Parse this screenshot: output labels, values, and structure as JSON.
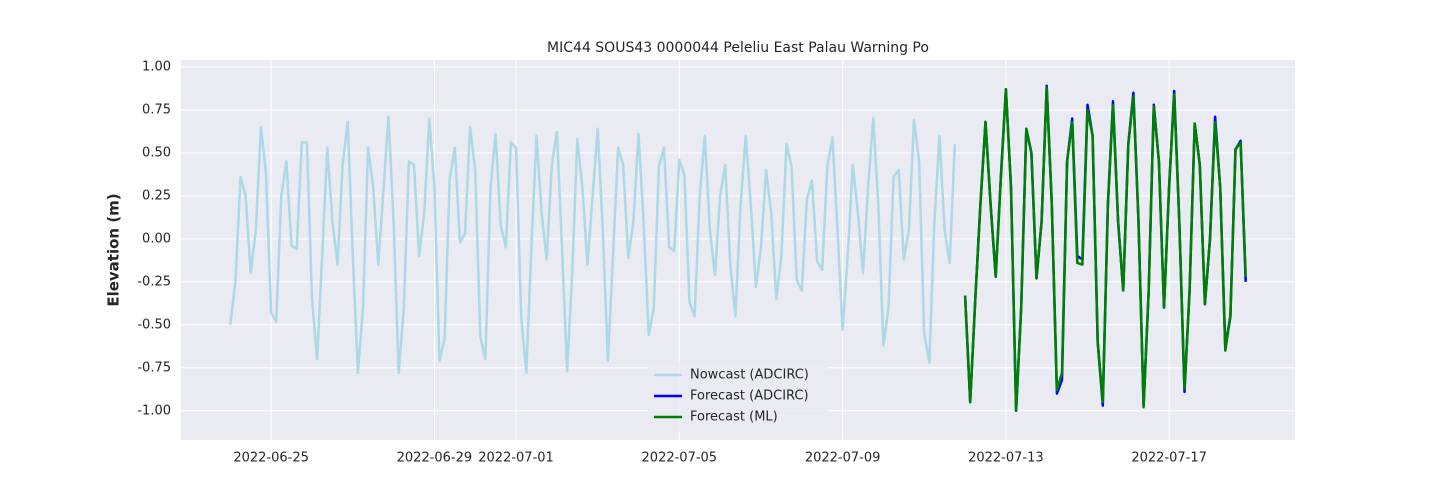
{
  "chart_data": {
    "type": "line",
    "title": "MIC44 SOUS43 0000044 Peleliu East Palau Warning Po",
    "y_label": "Elevation (m)",
    "grid": true,
    "legend": "lower center",
    "xlim": [
      "2022-06-22 19:00",
      "2022-07-20 02:00"
    ],
    "xticks": [
      "2022-06-25",
      "2022-06-29",
      "2022-07-01",
      "2022-07-05",
      "2022-07-09",
      "2022-07-13",
      "2022-07-17"
    ],
    "ylim": [
      -1.17,
      1.04
    ],
    "yticks": [
      {
        "value": -1,
        "label": "-1.00"
      },
      {
        "value": -0.75,
        "label": "-0.75"
      },
      {
        "value": -0.5,
        "label": "-0.50"
      },
      {
        "value": -0.25,
        "label": "-0.25"
      },
      {
        "value": 0,
        "label": "0.00"
      },
      {
        "value": 0.25,
        "label": "0.25"
      },
      {
        "value": 0.5,
        "label": "0.50"
      },
      {
        "value": 0.75,
        "label": "0.75"
      },
      {
        "value": 1,
        "label": "1.00"
      }
    ],
    "series": [
      {
        "name": "Nowcast (ADCIRC)",
        "color": "#add8e6",
        "width": 2.5,
        "x": [
          "2022-06-24 00:00",
          "2022-06-24 03:00",
          "2022-06-24 06:00",
          "2022-06-24 09:00",
          "2022-06-24 12:00",
          "2022-06-24 15:00",
          "2022-06-24 18:00",
          "2022-06-24 21:00",
          "2022-06-25 00:00",
          "2022-06-25 03:00",
          "2022-06-25 06:00",
          "2022-06-25 09:00",
          "2022-06-25 12:00",
          "2022-06-25 15:00",
          "2022-06-25 18:00",
          "2022-06-25 21:00",
          "2022-06-26 00:00",
          "2022-06-26 03:00",
          "2022-06-26 06:00",
          "2022-06-26 09:00",
          "2022-06-26 12:00",
          "2022-06-26 15:00",
          "2022-06-26 18:00",
          "2022-06-26 21:00",
          "2022-06-27 00:00",
          "2022-06-27 03:00",
          "2022-06-27 06:00",
          "2022-06-27 09:00",
          "2022-06-27 12:00",
          "2022-06-27 15:00",
          "2022-06-27 18:00",
          "2022-06-27 21:00",
          "2022-06-28 00:00",
          "2022-06-28 03:00",
          "2022-06-28 06:00",
          "2022-06-28 09:00",
          "2022-06-28 12:00",
          "2022-06-28 15:00",
          "2022-06-28 18:00",
          "2022-06-28 21:00",
          "2022-06-29 00:00",
          "2022-06-29 03:00",
          "2022-06-29 06:00",
          "2022-06-29 09:00",
          "2022-06-29 12:00",
          "2022-06-29 15:00",
          "2022-06-29 18:00",
          "2022-06-29 21:00",
          "2022-06-30 00:00",
          "2022-06-30 03:00",
          "2022-06-30 06:00",
          "2022-06-30 09:00",
          "2022-06-30 12:00",
          "2022-06-30 15:00",
          "2022-06-30 18:00",
          "2022-06-30 21:00",
          "2022-07-01 00:00",
          "2022-07-01 03:00",
          "2022-07-01 06:00",
          "2022-07-01 09:00",
          "2022-07-01 12:00",
          "2022-07-01 15:00",
          "2022-07-01 18:00",
          "2022-07-01 21:00",
          "2022-07-02 00:00",
          "2022-07-02 03:00",
          "2022-07-02 06:00",
          "2022-07-02 09:00",
          "2022-07-02 12:00",
          "2022-07-02 15:00",
          "2022-07-02 18:00",
          "2022-07-02 21:00",
          "2022-07-03 00:00",
          "2022-07-03 03:00",
          "2022-07-03 06:00",
          "2022-07-03 09:00",
          "2022-07-03 12:00",
          "2022-07-03 15:00",
          "2022-07-03 18:00",
          "2022-07-03 21:00",
          "2022-07-04 00:00",
          "2022-07-04 03:00",
          "2022-07-04 06:00",
          "2022-07-04 09:00",
          "2022-07-04 12:00",
          "2022-07-04 15:00",
          "2022-07-04 18:00",
          "2022-07-04 21:00",
          "2022-07-05 00:00",
          "2022-07-05 03:00",
          "2022-07-05 06:00",
          "2022-07-05 09:00",
          "2022-07-05 12:00",
          "2022-07-05 15:00",
          "2022-07-05 18:00",
          "2022-07-05 21:00",
          "2022-07-06 00:00",
          "2022-07-06 03:00",
          "2022-07-06 06:00",
          "2022-07-06 09:00",
          "2022-07-06 12:00",
          "2022-07-06 15:00",
          "2022-07-06 18:00",
          "2022-07-06 21:00",
          "2022-07-07 00:00",
          "2022-07-07 03:00",
          "2022-07-07 06:00",
          "2022-07-07 09:00",
          "2022-07-07 12:00",
          "2022-07-07 15:00",
          "2022-07-07 18:00",
          "2022-07-07 21:00",
          "2022-07-08 00:00",
          "2022-07-08 03:00",
          "2022-07-08 06:00",
          "2022-07-08 09:00",
          "2022-07-08 12:00",
          "2022-07-08 15:00",
          "2022-07-08 18:00",
          "2022-07-08 21:00",
          "2022-07-09 00:00",
          "2022-07-09 03:00",
          "2022-07-09 06:00",
          "2022-07-09 09:00",
          "2022-07-09 12:00",
          "2022-07-09 15:00",
          "2022-07-09 18:00",
          "2022-07-09 21:00",
          "2022-07-10 00:00",
          "2022-07-10 03:00",
          "2022-07-10 06:00",
          "2022-07-10 09:00",
          "2022-07-10 12:00",
          "2022-07-10 15:00",
          "2022-07-10 18:00",
          "2022-07-10 21:00",
          "2022-07-11 00:00",
          "2022-07-11 03:00",
          "2022-07-11 06:00",
          "2022-07-11 09:00",
          "2022-07-11 12:00",
          "2022-07-11 15:00",
          "2022-07-11 18:00"
        ],
        "values": [
          -0.5,
          -0.25,
          0.36,
          0.25,
          -0.2,
          0.05,
          0.65,
          0.38,
          -0.43,
          -0.48,
          0.25,
          0.45,
          -0.04,
          -0.06,
          0.56,
          0.56,
          -0.35,
          -0.7,
          -0.1,
          0.53,
          0.1,
          -0.15,
          0.43,
          0.68,
          -0.1,
          -0.78,
          -0.4,
          0.53,
          0.3,
          -0.15,
          0.28,
          0.71,
          0.1,
          -0.78,
          -0.4,
          0.45,
          0.43,
          -0.1,
          0.15,
          0.7,
          0.3,
          -0.71,
          -0.58,
          0.35,
          0.53,
          -0.02,
          0.03,
          0.65,
          0.4,
          -0.57,
          -0.7,
          0.3,
          0.61,
          0.08,
          -0.05,
          0.56,
          0.53,
          -0.45,
          -0.78,
          -0.05,
          0.6,
          0.15,
          -0.12,
          0.43,
          0.62,
          -0.05,
          -0.77,
          -0.2,
          0.58,
          0.3,
          -0.15,
          0.25,
          0.64,
          0.05,
          -0.71,
          -0.1,
          0.53,
          0.43,
          -0.11,
          0.1,
          0.61,
          0.1,
          -0.56,
          -0.4,
          0.42,
          0.53,
          -0.05,
          -0.07,
          0.46,
          0.37,
          -0.37,
          -0.45,
          0.25,
          0.6,
          0.05,
          -0.21,
          0.25,
          0.43,
          -0.15,
          -0.45,
          0.2,
          0.6,
          0.2,
          -0.28,
          -0.05,
          0.4,
          0.15,
          -0.35,
          -0.1,
          0.55,
          0.42,
          -0.24,
          -0.3,
          0.23,
          0.34,
          -0.13,
          -0.18,
          0.42,
          0.59,
          0.05,
          -0.53,
          -0.1,
          0.43,
          0.15,
          -0.2,
          0.3,
          0.7,
          0.2,
          -0.62,
          -0.4,
          0.36,
          0.4,
          -0.12,
          0.05,
          0.69,
          0.45,
          -0.55,
          -0.72,
          0.1,
          0.6,
          0.05,
          -0.14,
          0.55
        ]
      },
      {
        "name": "Forecast (ADCIRC)",
        "color": "#0000ff",
        "width": 2.5,
        "x": [
          "2022-07-12 00:00",
          "2022-07-12 03:00",
          "2022-07-12 06:00",
          "2022-07-12 09:00",
          "2022-07-12 12:00",
          "2022-07-12 15:00",
          "2022-07-12 18:00",
          "2022-07-12 21:00",
          "2022-07-13 00:00",
          "2022-07-13 03:00",
          "2022-07-13 06:00",
          "2022-07-13 09:00",
          "2022-07-13 12:00",
          "2022-07-13 15:00",
          "2022-07-13 18:00",
          "2022-07-13 21:00",
          "2022-07-14 00:00",
          "2022-07-14 03:00",
          "2022-07-14 06:00",
          "2022-07-14 09:00",
          "2022-07-14 12:00",
          "2022-07-14 15:00",
          "2022-07-14 18:00",
          "2022-07-14 21:00",
          "2022-07-15 00:00",
          "2022-07-15 03:00",
          "2022-07-15 06:00",
          "2022-07-15 09:00",
          "2022-07-15 12:00",
          "2022-07-15 15:00",
          "2022-07-15 18:00",
          "2022-07-15 21:00",
          "2022-07-16 00:00",
          "2022-07-16 03:00",
          "2022-07-16 06:00",
          "2022-07-16 09:00",
          "2022-07-16 12:00",
          "2022-07-16 15:00",
          "2022-07-16 18:00",
          "2022-07-16 21:00",
          "2022-07-17 00:00",
          "2022-07-17 03:00",
          "2022-07-17 06:00",
          "2022-07-17 09:00",
          "2022-07-17 12:00",
          "2022-07-17 15:00",
          "2022-07-17 18:00",
          "2022-07-17 21:00",
          "2022-07-18 00:00",
          "2022-07-18 03:00",
          "2022-07-18 06:00",
          "2022-07-18 09:00",
          "2022-07-18 12:00",
          "2022-07-18 15:00",
          "2022-07-18 18:00",
          "2022-07-18 21:00"
        ],
        "values": [
          -0.33,
          -0.95,
          -0.35,
          0.2,
          0.68,
          0.2,
          -0.22,
          0.35,
          0.87,
          0.3,
          -1.0,
          -0.4,
          0.64,
          0.5,
          -0.23,
          0.1,
          0.89,
          0.2,
          -0.9,
          -0.82,
          0.45,
          0.7,
          -0.1,
          -0.12,
          0.78,
          0.6,
          -0.6,
          -0.97,
          0.2,
          0.8,
          0.1,
          -0.3,
          0.55,
          0.85,
          0.1,
          -0.97,
          -0.3,
          0.78,
          0.45,
          -0.4,
          0.3,
          0.86,
          0.1,
          -0.89,
          -0.3,
          0.67,
          0.43,
          -0.38,
          0.0,
          0.71,
          0.3,
          -0.63,
          -0.45,
          0.52,
          0.57,
          -0.25
        ]
      },
      {
        "name": "Forecast (ML)",
        "color": "#008000",
        "width": 2.5,
        "x": [
          "2022-07-12 00:00",
          "2022-07-12 03:00",
          "2022-07-12 06:00",
          "2022-07-12 09:00",
          "2022-07-12 12:00",
          "2022-07-12 15:00",
          "2022-07-12 18:00",
          "2022-07-12 21:00",
          "2022-07-13 00:00",
          "2022-07-13 03:00",
          "2022-07-13 06:00",
          "2022-07-13 09:00",
          "2022-07-13 12:00",
          "2022-07-13 15:00",
          "2022-07-13 18:00",
          "2022-07-13 21:00",
          "2022-07-14 00:00",
          "2022-07-14 03:00",
          "2022-07-14 06:00",
          "2022-07-14 09:00",
          "2022-07-14 12:00",
          "2022-07-14 15:00",
          "2022-07-14 18:00",
          "2022-07-14 21:00",
          "2022-07-15 00:00",
          "2022-07-15 03:00",
          "2022-07-15 06:00",
          "2022-07-15 09:00",
          "2022-07-15 12:00",
          "2022-07-15 15:00",
          "2022-07-15 18:00",
          "2022-07-15 21:00",
          "2022-07-16 00:00",
          "2022-07-16 03:00",
          "2022-07-16 06:00",
          "2022-07-16 09:00",
          "2022-07-16 12:00",
          "2022-07-16 15:00",
          "2022-07-16 18:00",
          "2022-07-16 21:00",
          "2022-07-17 00:00",
          "2022-07-17 03:00",
          "2022-07-17 06:00",
          "2022-07-17 09:00",
          "2022-07-17 12:00",
          "2022-07-17 15:00",
          "2022-07-17 18:00",
          "2022-07-17 21:00",
          "2022-07-18 00:00",
          "2022-07-18 03:00",
          "2022-07-18 06:00",
          "2022-07-18 09:00",
          "2022-07-18 12:00",
          "2022-07-18 15:00",
          "2022-07-18 18:00",
          "2022-07-18 21:00"
        ],
        "values": [
          -0.33,
          -0.95,
          -0.35,
          0.2,
          0.68,
          0.2,
          -0.22,
          0.35,
          0.87,
          0.3,
          -1.0,
          -0.4,
          0.64,
          0.5,
          -0.23,
          0.1,
          0.88,
          0.2,
          -0.88,
          -0.78,
          0.45,
          0.68,
          -0.14,
          -0.15,
          0.75,
          0.6,
          -0.6,
          -0.95,
          0.2,
          0.78,
          0.1,
          -0.3,
          0.55,
          0.83,
          0.1,
          -0.98,
          -0.3,
          0.77,
          0.45,
          -0.4,
          0.3,
          0.84,
          0.1,
          -0.87,
          -0.3,
          0.67,
          0.43,
          -0.38,
          0.0,
          0.68,
          0.3,
          -0.65,
          -0.45,
          0.52,
          0.56,
          -0.22
        ]
      }
    ]
  }
}
